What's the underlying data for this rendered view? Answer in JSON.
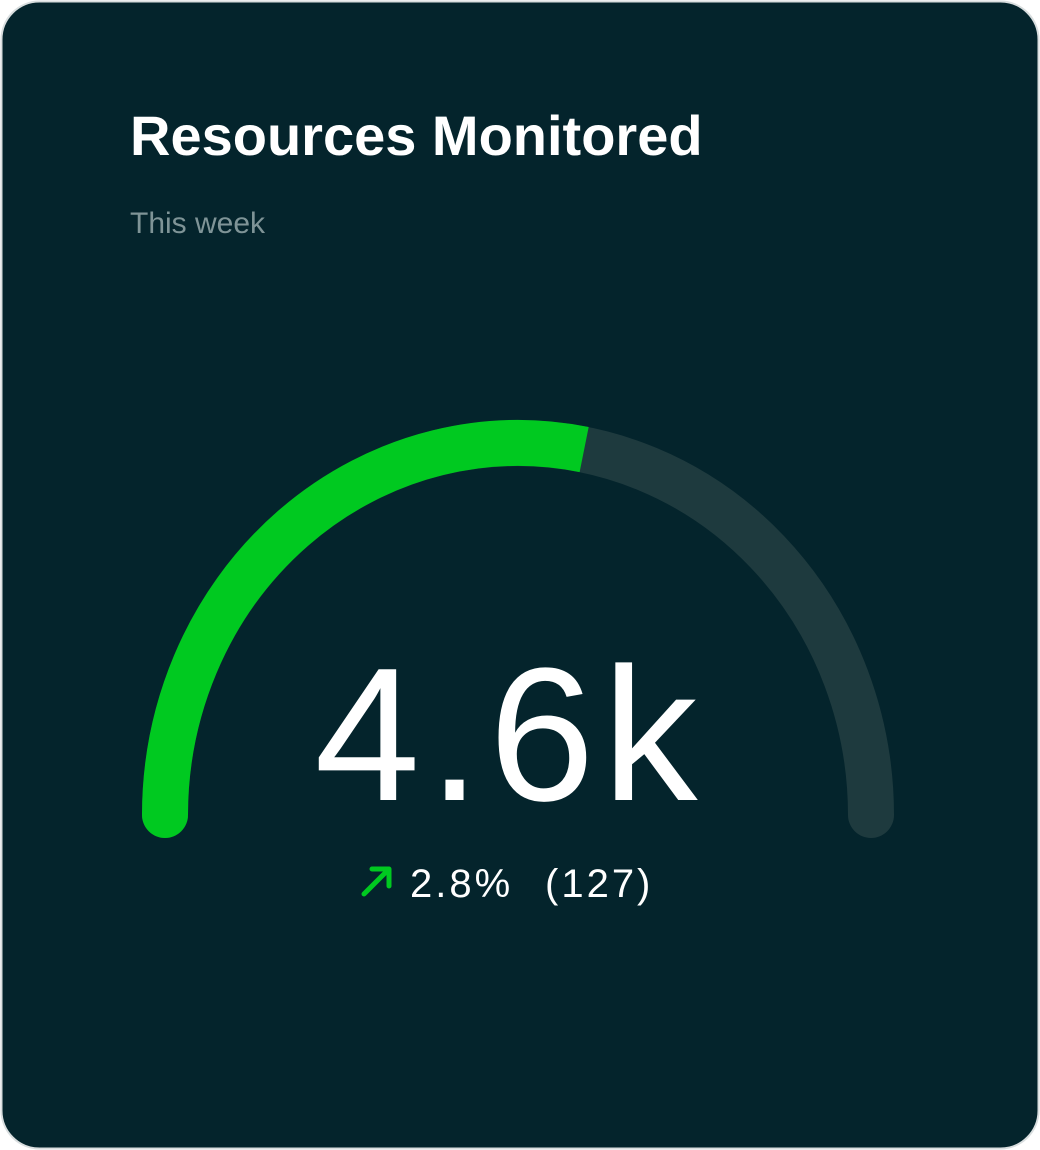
{
  "chart_data": {
    "type": "gauge",
    "title": "Resources Monitored",
    "subtitle": "This week",
    "values": [
      56
    ],
    "ylim": [
      0,
      100
    ],
    "color": "#00c920",
    "track_color": "#1e3a3e",
    "value_text": "4.6k",
    "change": "2.8%",
    "change_count": "(127)"
  }
}
